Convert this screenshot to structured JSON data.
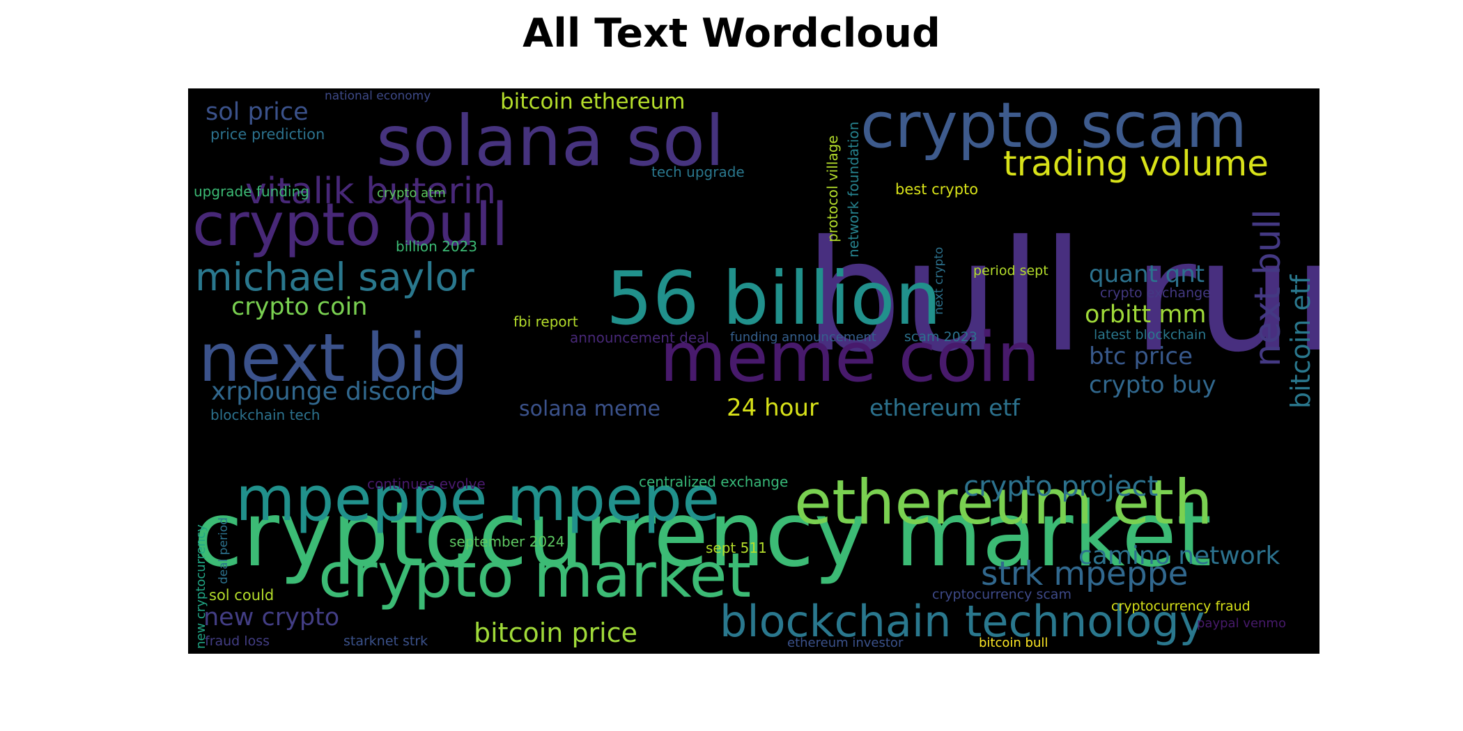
{
  "title": "All Text Wordcloud",
  "wordcloud": {
    "background": "#000000",
    "colormap": "viridis",
    "words": [
      {
        "text": "bull run",
        "color": "#482f7f"
      },
      {
        "text": "cryptocurrency market",
        "color": "#3cbb75"
      },
      {
        "text": "solana sol",
        "color": "#46337e"
      },
      {
        "text": "crypto scam",
        "color": "#3e5b8d"
      },
      {
        "text": "56 billion",
        "color": "#21918c"
      },
      {
        "text": "meme coin",
        "color": "#481a6c"
      },
      {
        "text": "next big",
        "color": "#3b528b"
      },
      {
        "text": "crypto bull",
        "color": "#482878"
      },
      {
        "text": "mpeppe mpepe",
        "color": "#21918c"
      },
      {
        "text": "ethereum eth",
        "color": "#7ad151"
      },
      {
        "text": "crypto market",
        "color": "#3cbb75"
      },
      {
        "text": "michael saylor",
        "color": "#2a788e"
      },
      {
        "text": "vitalik buterin",
        "color": "#482878"
      },
      {
        "text": "blockchain technology",
        "color": "#2a788e"
      },
      {
        "text": "trading volume",
        "color": "#d8e219"
      },
      {
        "text": "next bull",
        "color": "#443983"
      },
      {
        "text": "bitcoin etf",
        "color": "#2a788e"
      },
      {
        "text": "strk mpeppe",
        "color": "#31688e"
      },
      {
        "text": "crypto project",
        "color": "#2c728e"
      },
      {
        "text": "xrplounge discord",
        "color": "#31688e"
      },
      {
        "text": "camino network",
        "color": "#2c728e"
      },
      {
        "text": "crypto coin",
        "color": "#7ad151"
      },
      {
        "text": "sol price",
        "color": "#3b528b"
      },
      {
        "text": "new crypto",
        "color": "#433e85"
      },
      {
        "text": "bitcoin price",
        "color": "#a0da39"
      },
      {
        "text": "quant qnt",
        "color": "#2c728e"
      },
      {
        "text": "btc price",
        "color": "#38598c"
      },
      {
        "text": "crypto buy",
        "color": "#31688e"
      },
      {
        "text": "orbitt mm",
        "color": "#a0da39"
      },
      {
        "text": "ethereum etf",
        "color": "#2c728e"
      },
      {
        "text": "solana meme",
        "color": "#3b528b"
      },
      {
        "text": "24 hour",
        "color": "#d8e219"
      },
      {
        "text": "bitcoin ethereum",
        "color": "#b5de2b"
      },
      {
        "text": "price prediction",
        "color": "#2c728e"
      },
      {
        "text": "national economy",
        "color": "#3e4a89"
      },
      {
        "text": "tech upgrade",
        "color": "#2a788e"
      },
      {
        "text": "upgrade funding",
        "color": "#3cbb75"
      },
      {
        "text": "crypto atm",
        "color": "#5ec962"
      },
      {
        "text": "billion 2023",
        "color": "#3cbb75"
      },
      {
        "text": "best crypto",
        "color": "#d8e219"
      },
      {
        "text": "protocol village",
        "color": "#b5de2b"
      },
      {
        "text": "network foundation",
        "color": "#26828e"
      },
      {
        "text": "next crypto",
        "color": "#2c728e"
      },
      {
        "text": "period sept",
        "color": "#b5de2b"
      },
      {
        "text": "crypto exchange",
        "color": "#443983"
      },
      {
        "text": "fbi report",
        "color": "#b5de2b"
      },
      {
        "text": "announcement deal",
        "color": "#482878"
      },
      {
        "text": "funding announcement",
        "color": "#355f8d"
      },
      {
        "text": "scam 2023",
        "color": "#2c728e"
      },
      {
        "text": "latest blockchain",
        "color": "#2a788e"
      },
      {
        "text": "blockchain tech",
        "color": "#2c728e"
      },
      {
        "text": "continues evolve",
        "color": "#481a6c"
      },
      {
        "text": "centralized exchange",
        "color": "#37b878"
      },
      {
        "text": "september 2024",
        "color": "#5ec962"
      },
      {
        "text": "sept 511",
        "color": "#b5de2b"
      },
      {
        "text": "new cryptocurrency",
        "color": "#21a685"
      },
      {
        "text": "deal period",
        "color": "#2c728e"
      },
      {
        "text": "sol could",
        "color": "#b5de2b"
      },
      {
        "text": "cryptocurrency scam",
        "color": "#3e4a89"
      },
      {
        "text": "cryptocurrency fraud",
        "color": "#d8e219"
      },
      {
        "text": "fraud loss",
        "color": "#433e85"
      },
      {
        "text": "starknet strk",
        "color": "#3b528b"
      },
      {
        "text": "ethereum investor",
        "color": "#3b528b"
      },
      {
        "text": "bitcoin bull",
        "color": "#fde725"
      },
      {
        "text": "paypal venmo",
        "color": "#481a6c"
      }
    ]
  }
}
